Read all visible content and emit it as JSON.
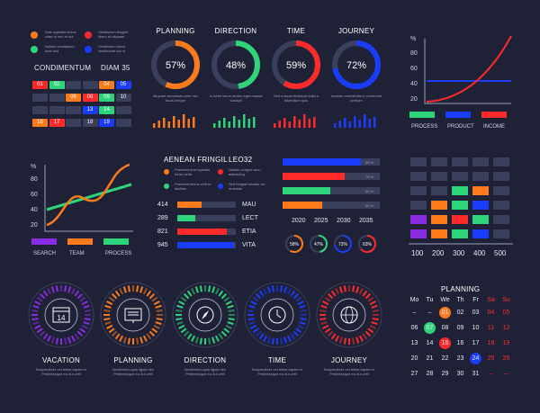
{
  "colors": {
    "bg": "#1f2236",
    "orange": "#ff7a1a",
    "green": "#2ed47a",
    "red": "#ff2b2b",
    "blue": "#1a3cff",
    "purple": "#8a2be2",
    "track": "#3a3f5c"
  },
  "legend_top": [
    {
      "text": "Duis egestas lectus vitae ut nec et dui",
      "color": "#ff7a1a"
    },
    {
      "text": "Vestibulum feugiat libero et aliquam",
      "color": "#ff2b2b"
    },
    {
      "text": "Nullam vestibulum duis sed",
      "color": "#2ed47a"
    },
    {
      "text": "Vestibulum fusce vestibulum dui ut",
      "color": "#1a3cff"
    }
  ],
  "grid_table": {
    "title_left": "CONDIMENTUM",
    "title_right": "DIAM 35",
    "numbers": [
      "01",
      "02",
      "03",
      "04",
      "05",
      "06",
      "07",
      "08",
      "09",
      "10",
      "11",
      "12",
      "13",
      "14",
      "15",
      "16",
      "17",
      "18",
      "19"
    ]
  },
  "donuts": [
    {
      "label": "PLANNING",
      "value": "57%",
      "pct": 57,
      "color": "#ff7a1a",
      "desc": "Aliquam accumsan ante nec lacus integer"
    },
    {
      "label": "DIRECTION",
      "value": "48%",
      "pct": 48,
      "color": "#2ed47a",
      "desc": "In tortor lacus ornare eget massa suscipit"
    },
    {
      "label": "TIME",
      "value": "59%",
      "pct": 59,
      "color": "#ff2b2b",
      "desc": "Sed a lacus tincidunt nulla a bibendum quis"
    },
    {
      "label": "JOURNEY",
      "value": "72%",
      "pct": 72,
      "color": "#1a3cff",
      "desc": "Aenean molestuda in commodo pretium"
    }
  ],
  "growth_chart": {
    "y_unit": "%",
    "y_ticks": [
      "80",
      "60",
      "40",
      "20"
    ],
    "legend": [
      {
        "label": "PROCESS",
        "color": "#2ed47a"
      },
      {
        "label": "PRODUCT",
        "color": "#1a3cff"
      },
      {
        "label": "INCOME",
        "color": "#ff2b2b"
      }
    ]
  },
  "wave_chart": {
    "y_unit": "%",
    "y_ticks": [
      "80",
      "60",
      "40",
      "20"
    ],
    "legend": [
      {
        "label": "SEARCH",
        "color": "#8a2be2"
      },
      {
        "label": "TEAM",
        "color": "#ff7a1a"
      },
      {
        "label": "PROCESS",
        "color": "#2ed47a"
      }
    ]
  },
  "mid_panel": {
    "title_left": "AENEAN FRINGIL",
    "title_right": "LEO32",
    "items": [
      {
        "text": "Praesent erat egestas tortor pella",
        "color": "#ff7a1a"
      },
      {
        "text": "Nullam congue arcu adipiscing",
        "color": "#ff2b2b"
      },
      {
        "text": "Praesent lectus velit et facilisis",
        "color": "#2ed47a"
      },
      {
        "text": "Sed feugiat lobortis vel molestie",
        "color": "#1a3cff"
      }
    ],
    "bars": [
      {
        "num": "414",
        "label": "MAU",
        "pct": 0.42,
        "color": "#ff7a1a"
      },
      {
        "num": "289",
        "label": "LECT",
        "pct": 0.3,
        "color": "#2ed47a"
      },
      {
        "num": "821",
        "label": "ETIA",
        "pct": 0.85,
        "color": "#ff2b2b"
      },
      {
        "num": "945",
        "label": "VITA",
        "pct": 0.97,
        "color": "#1a3cff"
      }
    ]
  },
  "hbar_chart": {
    "bars": [
      {
        "pct": 0.98,
        "tag": "98 %",
        "color": "#1a3cff"
      },
      {
        "pct": 0.78,
        "tag": "78 %",
        "color": "#ff2b2b"
      },
      {
        "pct": 0.6,
        "tag": "60 %",
        "color": "#2ed47a"
      },
      {
        "pct": 0.5,
        "tag": "50 %",
        "color": "#ff7a1a"
      }
    ],
    "x_labels": [
      "2020",
      "2025",
      "2030",
      "2035"
    ],
    "mini_donuts": [
      {
        "value": "58%",
        "pct": 58,
        "color": "#ff7a1a"
      },
      {
        "value": "47%",
        "pct": 47,
        "color": "#2ed47a"
      },
      {
        "value": "72%",
        "pct": 72,
        "color": "#1a3cff"
      },
      {
        "value": "63%",
        "pct": 63,
        "color": "#ff2b2b"
      }
    ]
  },
  "heatmap": {
    "x_labels": [
      "100",
      "200",
      "300",
      "400",
      "500"
    ]
  },
  "dials": [
    {
      "label": "VACATION",
      "icon": "calendar-icon",
      "day": "14",
      "color": "#8a2be2",
      "desc": "Suspendisse vel tellus sapien in Pellentesque eu dui velit"
    },
    {
      "label": "PLANNING",
      "icon": "presentation-icon",
      "color": "#ff7a1a",
      "desc": "Vestibulum quis ligula nec Pellentesque eu dui velit"
    },
    {
      "label": "DIRECTION",
      "icon": "compass-icon",
      "color": "#2ed47a",
      "desc": "Vestibulum quis ligula nec Pellentesque eu dui velit"
    },
    {
      "label": "TIME",
      "icon": "clock-icon",
      "color": "#1a3cff",
      "desc": "Suspendisse vel tellus sapien in Pellentesque eu dui velit"
    },
    {
      "label": "JOURNEY",
      "icon": "globe-icon",
      "color": "#ff2b2b",
      "desc": "Suspendisse vel tellus sapien in Pellentesque eu dui velit"
    }
  ],
  "calendar": {
    "title": "PLANNING",
    "weekdays": [
      "Mo",
      "Tu",
      "We",
      "Th",
      "Fr",
      "Sa",
      "Su"
    ],
    "rows": [
      [
        "–",
        "–",
        "01",
        "02",
        "03",
        "04",
        "05"
      ],
      [
        "06",
        "07",
        "08",
        "09",
        "10",
        "11",
        "12"
      ],
      [
        "13",
        "14",
        "15",
        "16",
        "17",
        "18",
        "19"
      ],
      [
        "20",
        "21",
        "22",
        "23",
        "24",
        "25",
        "26"
      ],
      [
        "27",
        "28",
        "29",
        "30",
        "31",
        "–",
        "–"
      ]
    ],
    "highlights": {
      "07": "#2ed47a",
      "15": "#ff2b2b",
      "24": "#1a3cff",
      "01": "#ff7a1a"
    }
  }
}
